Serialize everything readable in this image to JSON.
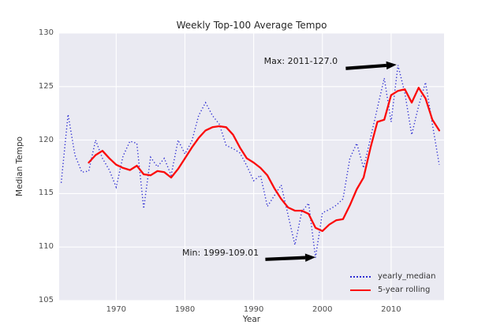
{
  "chart_data": {
    "type": "line",
    "title": "Weekly Top-100 Average Tempo",
    "xlabel": "Year",
    "ylabel": "Median Tempo",
    "xlim": [
      1961.7,
      2017.7
    ],
    "ylim": [
      105,
      130
    ],
    "x_ticks": [
      1970,
      1980,
      1990,
      2000,
      2010
    ],
    "y_ticks": [
      105,
      110,
      115,
      120,
      125,
      130
    ],
    "grid": true,
    "plot_bg": "#eaeaf2",
    "grid_color": "#ffffff",
    "legend_position": "lower right",
    "series": [
      {
        "name": "yearly_median",
        "color": "#2d2dd2",
        "line_style": "dotted",
        "start_year": 1962,
        "values": [
          116.0,
          122.4,
          118.6,
          117.0,
          117.1,
          120.0,
          118.3,
          117.2,
          115.6,
          118.5,
          119.9,
          119.7,
          113.6,
          118.4,
          117.5,
          118.3,
          116.7,
          120.0,
          118.7,
          119.9,
          122.3,
          123.5,
          122.3,
          121.5,
          119.5,
          119.2,
          118.8,
          117.6,
          116.2,
          116.7,
          113.8,
          114.8,
          115.8,
          113.0,
          110.2,
          113.3,
          114.1,
          109.01,
          113.2,
          113.5,
          113.9,
          114.5,
          118.3,
          119.7,
          117.4,
          120.2,
          123.0,
          125.8,
          121.7,
          127.0,
          124.4,
          120.5,
          123.2,
          125.4,
          121.5,
          117.7
        ]
      },
      {
        "name": "5-year rolling",
        "color": "#fb0a0a",
        "line_style": "solid",
        "start_year": 1966,
        "values": [
          117.9,
          118.6,
          119.0,
          118.3,
          117.7,
          117.4,
          117.2,
          117.6,
          116.8,
          116.7,
          117.1,
          117.0,
          116.5,
          117.3,
          118.3,
          119.3,
          120.2,
          120.9,
          121.2,
          121.3,
          121.2,
          120.5,
          119.3,
          118.3,
          117.9,
          117.4,
          116.7,
          115.5,
          114.5,
          113.7,
          113.4,
          113.4,
          113.1,
          111.8,
          111.5,
          112.1,
          112.5,
          112.6,
          113.9,
          115.4,
          116.5,
          119.3,
          121.7,
          121.9,
          124.2,
          124.6,
          124.75,
          123.5,
          124.9,
          123.9,
          121.9,
          120.9
        ]
      }
    ],
    "annotations": [
      {
        "label": "Max: 2011-127.0",
        "point": {
          "year": 2011,
          "value": 127.0
        },
        "text_pos": {
          "year": 1991.5,
          "value": 127.3
        },
        "arrow_from": {
          "year": 2003.4,
          "value": 126.7
        },
        "arrow_to": {
          "year": 2010.8,
          "value": 127.05
        }
      },
      {
        "label": "Min: 1999-109.01",
        "point": {
          "year": 1999,
          "value": 109.01
        },
        "text_pos": {
          "year": 1979.6,
          "value": 109.35
        },
        "arrow_from": {
          "year": 1991.7,
          "value": 108.85
        },
        "arrow_to": {
          "year": 1999.0,
          "value": 109.05
        }
      }
    ]
  }
}
